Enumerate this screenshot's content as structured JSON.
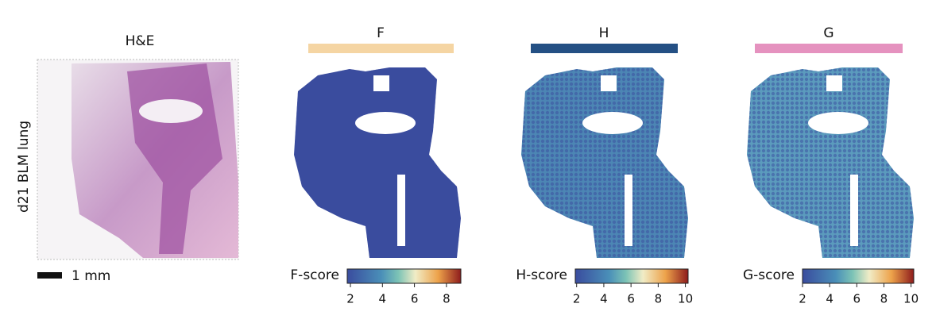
{
  "row_label": "d21 BLM lung",
  "scale_bar": "1 mm",
  "panels": [
    {
      "title": "H&E"
    },
    {
      "title": "F",
      "color": "#f5d5a3",
      "colorbar": {
        "label": "F-score",
        "lim": [
          1.8,
          8.9
        ],
        "ticks": [
          2,
          4,
          6,
          8
        ]
      }
    },
    {
      "title": "H",
      "color": "#245084",
      "colorbar": {
        "label": "H-score",
        "lim": [
          1.9,
          10.2
        ],
        "ticks": [
          2,
          4,
          6,
          8,
          10
        ]
      }
    },
    {
      "title": "G",
      "color": "#e592bf",
      "colorbar": {
        "label": "G-score",
        "lim": [
          2.0,
          10.2
        ],
        "ticks": [
          2,
          4,
          6,
          8,
          10
        ]
      }
    }
  ]
}
